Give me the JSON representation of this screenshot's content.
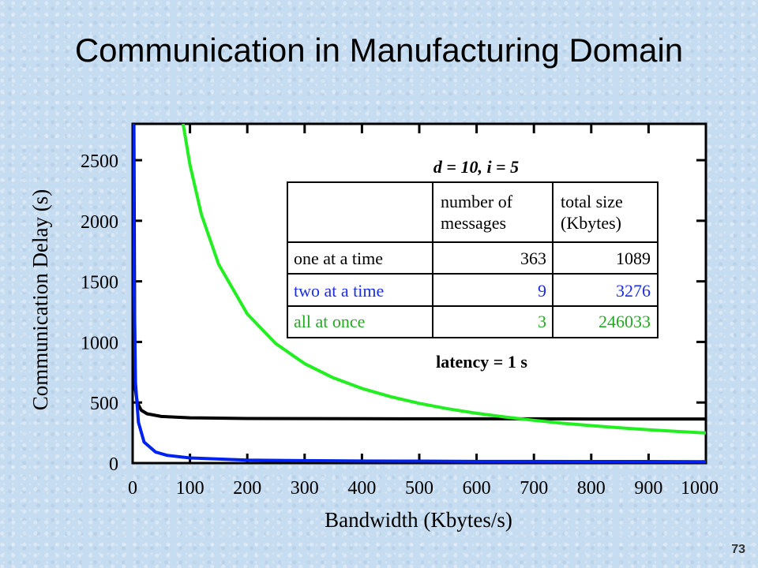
{
  "slide": {
    "title": "Communication in Manufacturing Domain",
    "page_number": "73"
  },
  "chart_data": {
    "type": "line",
    "xlabel": "Bandwidth (Kbytes/s)",
    "ylabel": "Communication Delay (s)",
    "xlim": [
      0,
      1000
    ],
    "ylim": [
      0,
      2800
    ],
    "xticks": [
      "0",
      "100",
      "200",
      "300",
      "400",
      "500",
      "600",
      "700",
      "800",
      "900",
      "1000"
    ],
    "yticks": [
      "0",
      "500",
      "1000",
      "1500",
      "2000",
      "2500"
    ],
    "grid": false,
    "series": [
      {
        "color": "#000000",
        "x": [
          2,
          4,
          8,
          15,
          25,
          50,
          100,
          200,
          300,
          400,
          500,
          600,
          700,
          800,
          900,
          1000
        ],
        "y": [
          2800,
          637,
          500,
          436,
          407,
          385,
          374,
          368,
          367,
          366,
          365,
          365,
          365,
          364,
          364,
          364
        ]
      },
      {
        "color": "#0022ee",
        "x": [
          1.2,
          2,
          5,
          10,
          20,
          40,
          60,
          100,
          200,
          300,
          400,
          500,
          600,
          700,
          800,
          900,
          1000
        ],
        "y": [
          2800,
          1647,
          664,
          337,
          173,
          91,
          64,
          42,
          25,
          20,
          17,
          16,
          14,
          14,
          13,
          13,
          12
        ]
      },
      {
        "color": "#22ee22",
        "x": [
          88,
          100,
          120,
          150,
          200,
          250,
          300,
          350,
          400,
          450,
          500,
          550,
          600,
          650,
          700,
          750,
          800,
          850,
          900,
          950,
          1000
        ],
        "y": [
          2800,
          2461,
          2051,
          1641,
          1231,
          985,
          821,
          704,
          616,
          548,
          493,
          448,
          411,
          380,
          353,
          329,
          309,
          291,
          275,
          261,
          249
        ]
      }
    ],
    "annotations": {
      "params": "d = 10, i = 5",
      "latency": "latency = 1 s"
    },
    "table": {
      "headers": [
        "",
        "number of messages",
        "total size (Kbytes)"
      ],
      "rows": [
        {
          "label": "one at a time",
          "messages": "363",
          "size": "1089",
          "color": "#000000"
        },
        {
          "label": "two at a time",
          "messages": "9",
          "size": "3276",
          "color": "#1a2ee6"
        },
        {
          "label": "all at once",
          "messages": "3",
          "size": "246033",
          "color": "#22aa22"
        }
      ]
    }
  }
}
